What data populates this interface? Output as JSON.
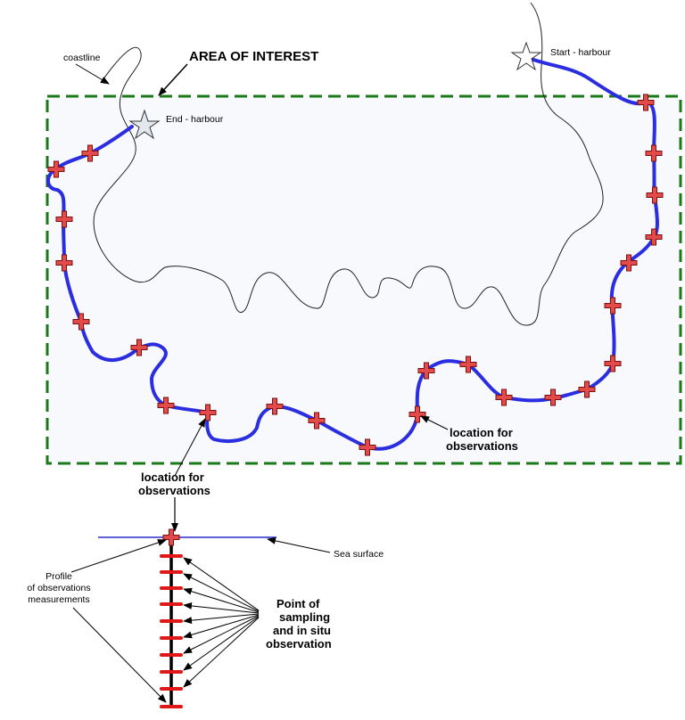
{
  "labels": {
    "title": "AREA OF INTEREST",
    "coastline": "coastline",
    "start": "Start - harbour",
    "end": "End - harbour",
    "location_right": [
      "location for",
      "observations"
    ],
    "location_bottom": [
      "location for",
      "observations"
    ],
    "sea_surface": "Sea surface",
    "profile": [
      "Profile",
      "of observations",
      "measurements"
    ],
    "sampling": [
      "Point of",
      "sampling",
      "and in situ",
      "observation"
    ]
  },
  "colors": {
    "area_border": "#1a7a1a",
    "area_fill": "#f7f9fc",
    "route": "#2b2ee0",
    "marker_fill": "#e34a4a",
    "marker_outline": "#7a1010",
    "sea_surface": "#2a2ad0",
    "coastline": "#222222",
    "star_fill": "#e3e7ee"
  }
}
